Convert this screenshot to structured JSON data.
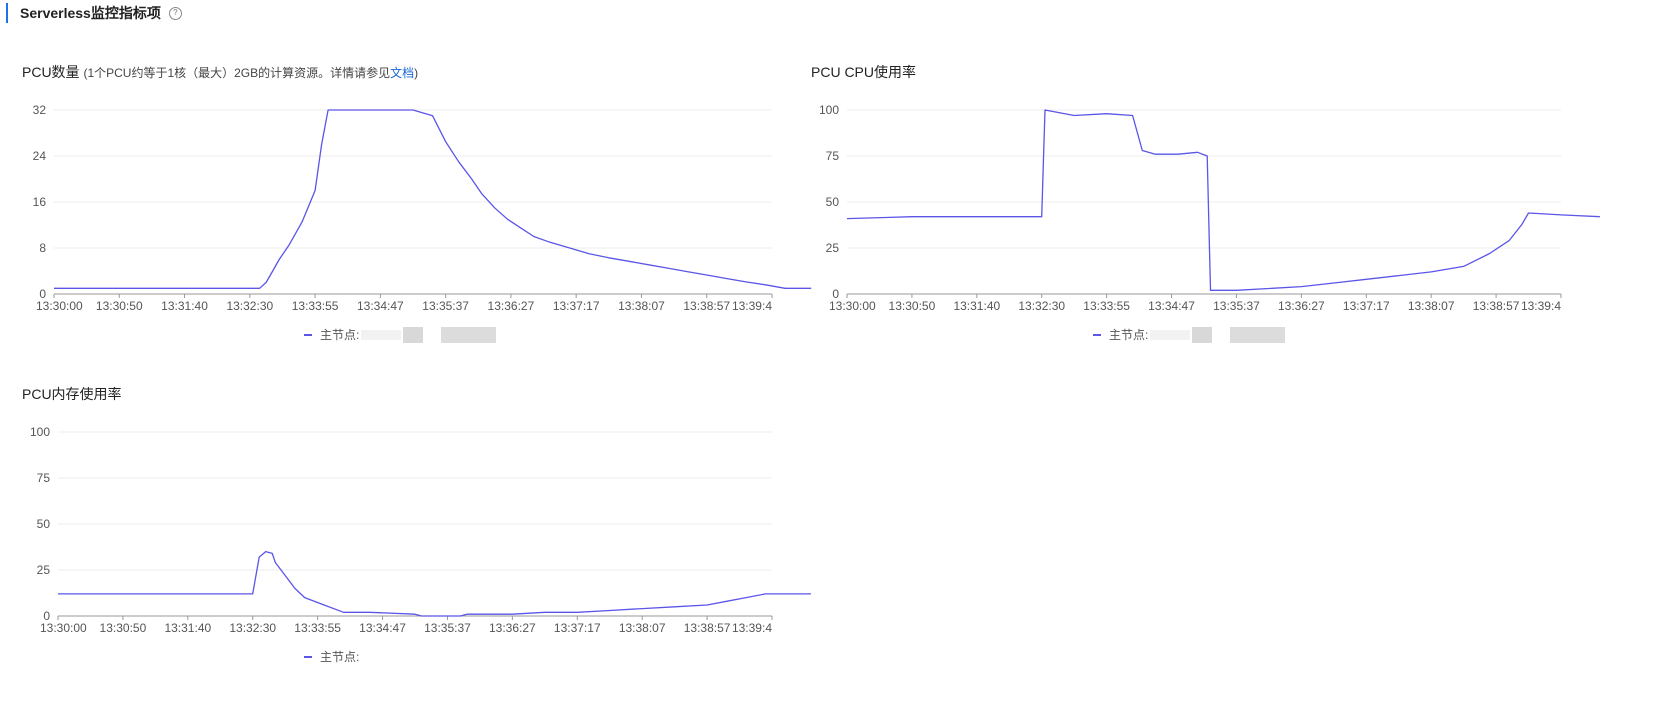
{
  "header": {
    "title": "Serverless监控指标项",
    "help_icon": "?"
  },
  "panels": [
    {
      "title": "PCU数量",
      "subtitle_pre": "(1个PCU约等于1核（最大）2GB的计算资源。详情请参见",
      "subtitle_link": "文档",
      "subtitle_post": ")",
      "legend_label": "主节点:"
    },
    {
      "title": "PCU CPU使用率",
      "legend_label": "主节点:"
    },
    {
      "title": "PCU内存使用率",
      "legend_label": "主节点:"
    }
  ],
  "colors": {
    "series": "#5b55e8",
    "grid": "#ececec",
    "axis": "#999999",
    "link": "#1a66d6",
    "accent": "#1a73e8"
  },
  "chart_data": [
    {
      "type": "line",
      "title": "PCU数量",
      "x": [
        "13:30:00",
        "13:30:50",
        "13:31:40",
        "13:32:30",
        "13:33:55",
        "13:34:47",
        "13:35:37",
        "13:36:27",
        "13:37:17",
        "13:38:07",
        "13:38:57",
        "13:39:4"
      ],
      "ylim": [
        0,
        32
      ],
      "yticks": [
        0,
        8,
        16,
        24,
        32
      ],
      "series": [
        {
          "name": "主节点",
          "points": [
            [
              0,
              1
            ],
            [
              3.15,
              1
            ],
            [
              3.25,
              2
            ],
            [
              3.35,
              4
            ],
            [
              3.45,
              6
            ],
            [
              3.6,
              8.5
            ],
            [
              3.8,
              12.5
            ],
            [
              4.0,
              18
            ],
            [
              4.1,
              26
            ],
            [
              4.2,
              32
            ],
            [
              5.5,
              32
            ],
            [
              5.8,
              31
            ],
            [
              6.0,
              26.5
            ],
            [
              6.2,
              23
            ],
            [
              6.4,
              20
            ],
            [
              6.55,
              17.5
            ],
            [
              6.75,
              15
            ],
            [
              6.95,
              13
            ],
            [
              7.15,
              11.5
            ],
            [
              7.35,
              10
            ],
            [
              7.6,
              9
            ],
            [
              7.9,
              8
            ],
            [
              8.2,
              7
            ],
            [
              8.5,
              6.3
            ],
            [
              8.8,
              5.7
            ],
            [
              9.1,
              5.1
            ],
            [
              9.4,
              4.5
            ],
            [
              9.7,
              3.9
            ],
            [
              10.0,
              3.3
            ],
            [
              10.3,
              2.7
            ],
            [
              10.6,
              2.1
            ],
            [
              10.9,
              1.6
            ],
            [
              11.2,
              1
            ],
            [
              11.6,
              1
            ]
          ]
        }
      ]
    },
    {
      "type": "line",
      "title": "PCU CPU使用率",
      "x": [
        "13:30:00",
        "13:30:50",
        "13:31:40",
        "13:32:30",
        "13:33:55",
        "13:34:47",
        "13:35:37",
        "13:36:27",
        "13:37:17",
        "13:38:07",
        "13:38:57",
        "13:39:4"
      ],
      "ylim": [
        0,
        100
      ],
      "yticks": [
        0,
        25,
        50,
        75,
        100
      ],
      "series": [
        {
          "name": "主节点",
          "points": [
            [
              0,
              41
            ],
            [
              1.0,
              42
            ],
            [
              2.0,
              42
            ],
            [
              3.0,
              42
            ],
            [
              3.05,
              100
            ],
            [
              3.5,
              97
            ],
            [
              4.0,
              98
            ],
            [
              4.4,
              97
            ],
            [
              4.55,
              78
            ],
            [
              4.75,
              76
            ],
            [
              5.1,
              76
            ],
            [
              5.4,
              77
            ],
            [
              5.55,
              75
            ],
            [
              5.6,
              2
            ],
            [
              6.0,
              2
            ],
            [
              6.5,
              3
            ],
            [
              7.0,
              4
            ],
            [
              7.5,
              6
            ],
            [
              8.0,
              8
            ],
            [
              8.5,
              10
            ],
            [
              9.0,
              12
            ],
            [
              9.5,
              15
            ],
            [
              9.9,
              22
            ],
            [
              10.2,
              29
            ],
            [
              10.4,
              38
            ],
            [
              10.5,
              44
            ],
            [
              11.0,
              43
            ],
            [
              11.6,
              42
            ]
          ]
        }
      ]
    },
    {
      "type": "line",
      "title": "PCU内存使用率",
      "x": [
        "13:30:00",
        "13:30:50",
        "13:31:40",
        "13:32:30",
        "13:33:55",
        "13:34:47",
        "13:35:37",
        "13:36:27",
        "13:37:17",
        "13:38:07",
        "13:38:57",
        "13:39:4"
      ],
      "ylim": [
        0,
        100
      ],
      "yticks": [
        0,
        25,
        50,
        75,
        100
      ],
      "series": [
        {
          "name": "主节点",
          "points": [
            [
              0,
              12
            ],
            [
              2.5,
              12
            ],
            [
              3.0,
              12
            ],
            [
              3.1,
              32
            ],
            [
              3.2,
              35
            ],
            [
              3.3,
              34
            ],
            [
              3.35,
              29
            ],
            [
              3.5,
              22
            ],
            [
              3.65,
              15
            ],
            [
              3.8,
              10
            ],
            [
              4.1,
              6
            ],
            [
              4.4,
              2
            ],
            [
              4.8,
              2
            ],
            [
              5.5,
              1
            ],
            [
              5.6,
              0
            ],
            [
              6.2,
              0
            ],
            [
              6.3,
              1
            ],
            [
              7.0,
              1
            ],
            [
              7.5,
              2
            ],
            [
              8.0,
              2
            ],
            [
              8.5,
              3
            ],
            [
              9.0,
              4
            ],
            [
              9.5,
              5
            ],
            [
              10.0,
              6
            ],
            [
              10.3,
              8
            ],
            [
              10.6,
              10
            ],
            [
              10.9,
              12
            ],
            [
              11.6,
              12
            ]
          ]
        }
      ]
    }
  ]
}
